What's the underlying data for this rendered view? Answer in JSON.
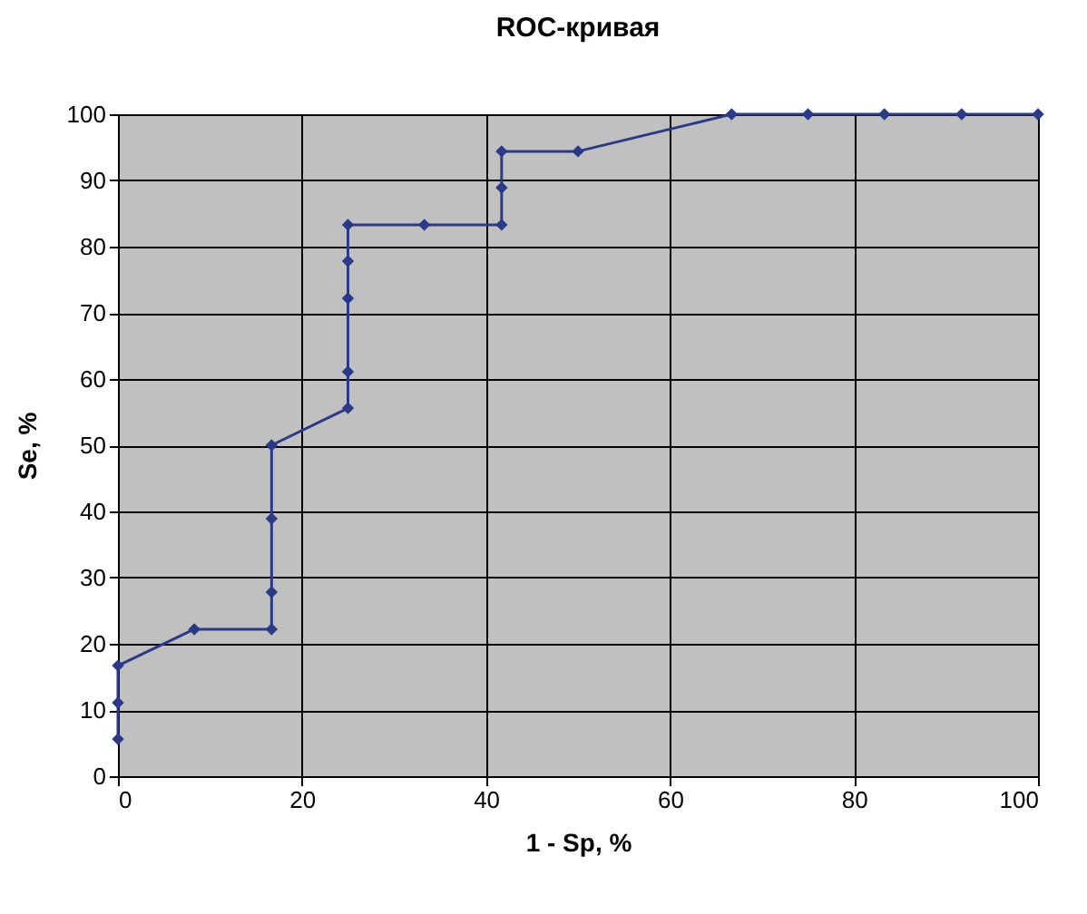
{
  "chart_data": {
    "type": "line",
    "title": "ROC-кривая",
    "xlabel": "1 - Sp, %",
    "ylabel": "Se, %",
    "x": [
      0,
      0,
      0,
      8.3,
      16.7,
      16.7,
      16.7,
      16.7,
      25,
      25,
      25,
      25,
      25,
      33.3,
      41.7,
      41.7,
      41.7,
      50,
      66.7,
      75,
      83.3,
      91.7,
      100
    ],
    "series": [
      {
        "color": "#2b3a87",
        "values": [
          5.6,
          11.1,
          16.7,
          22.2,
          22.2,
          27.8,
          38.9,
          50,
          55.6,
          61.1,
          72.2,
          77.8,
          83.3,
          83.3,
          83.3,
          88.9,
          94.4,
          94.4,
          100,
          100,
          100,
          100,
          100
        ]
      }
    ],
    "xlim": [
      0,
      100
    ],
    "xticks": [
      0,
      20,
      40,
      60,
      80,
      100
    ],
    "ylim": [
      0,
      100
    ],
    "yticks": [
      0,
      10,
      20,
      30,
      40,
      50,
      60,
      70,
      80,
      90,
      100
    ],
    "grid": true,
    "legend": false,
    "marker": "diamond",
    "line_style": "solid"
  }
}
